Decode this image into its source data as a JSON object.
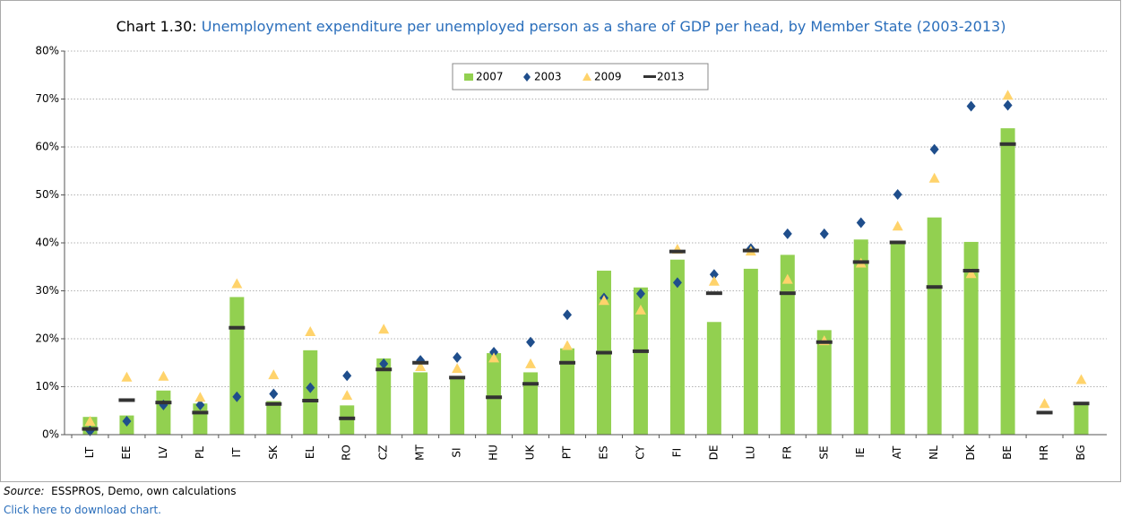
{
  "chart_data": {
    "type": "bar",
    "title_label": "Chart 1.30:",
    "title": "Unemployment expenditure per unemployed person as a share of GDP per head, by Member State (2003-2013)",
    "categories": [
      "LT",
      "EE",
      "LV",
      "PL",
      "IT",
      "SK",
      "EL",
      "RO",
      "CZ",
      "MT",
      "SI",
      "HU",
      "UK",
      "PT",
      "ES",
      "CY",
      "FI",
      "DE",
      "LU",
      "FR",
      "SE",
      "IE",
      "AT",
      "NL",
      "DK",
      "BE",
      "HR",
      "BG"
    ],
    "series": [
      {
        "name": "2007",
        "marker": "bar",
        "color": "#92d050",
        "values": [
          3.7,
          4,
          9.2,
          6.5,
          28.7,
          7,
          17.6,
          6.1,
          15.9,
          13,
          12,
          17,
          13,
          18,
          34.2,
          30.7,
          36.5,
          23.5,
          34.6,
          37.5,
          21.8,
          40.7,
          40.1,
          45.3,
          40.2,
          63.9,
          null,
          6.5
        ]
      },
      {
        "name": "2003",
        "marker": "diamond",
        "color": "#1f4e8c",
        "values": [
          0.8,
          2.8,
          6.2,
          6.2,
          7.9,
          8.5,
          9.8,
          12.3,
          14.8,
          15.5,
          16.1,
          17.2,
          19.3,
          25,
          28.5,
          29.4,
          31.7,
          33.4,
          38.8,
          41.9,
          41.9,
          44.2,
          50.1,
          59.5,
          68.5,
          68.7,
          null,
          null
        ]
      },
      {
        "name": "2009",
        "marker": "triangle",
        "color": "#ffd36b",
        "values": [
          2.8,
          12,
          12.2,
          7.8,
          31.5,
          12.5,
          21.5,
          8.2,
          22,
          14.2,
          13.8,
          16,
          14.8,
          18.6,
          28,
          26,
          38.7,
          32,
          38.3,
          32.4,
          19.6,
          35.8,
          43.5,
          53.5,
          33.6,
          70.8,
          6.5,
          11.5
        ]
      },
      {
        "name": "2013",
        "marker": "dash",
        "color": "#333333",
        "values": [
          1.2,
          7.2,
          6.7,
          4.6,
          22.3,
          6.4,
          7.1,
          3.4,
          13.6,
          15,
          11.9,
          7.8,
          10.6,
          15,
          17.1,
          17.4,
          38.2,
          29.5,
          38.4,
          29.5,
          19.3,
          36,
          40.1,
          30.8,
          34.2,
          60.6,
          4.6,
          6.5
        ]
      }
    ],
    "ylim": [
      0,
      80
    ],
    "yticks": [
      {
        "value": 0,
        "label": "0%"
      },
      {
        "value": 10,
        "label": "10%"
      },
      {
        "value": 20,
        "label": "20%"
      },
      {
        "value": 30,
        "label": "30%"
      },
      {
        "value": 40,
        "label": "40%"
      },
      {
        "value": 50,
        "label": "50%"
      },
      {
        "value": 60,
        "label": "60%"
      },
      {
        "value": 70,
        "label": "70%"
      },
      {
        "value": 80,
        "label": "80%"
      }
    ],
    "grid": true,
    "legend": "top",
    "source_label": "Source:",
    "source": "ESSPROS, Demo, own calculations",
    "link": "Click here to download chart."
  }
}
